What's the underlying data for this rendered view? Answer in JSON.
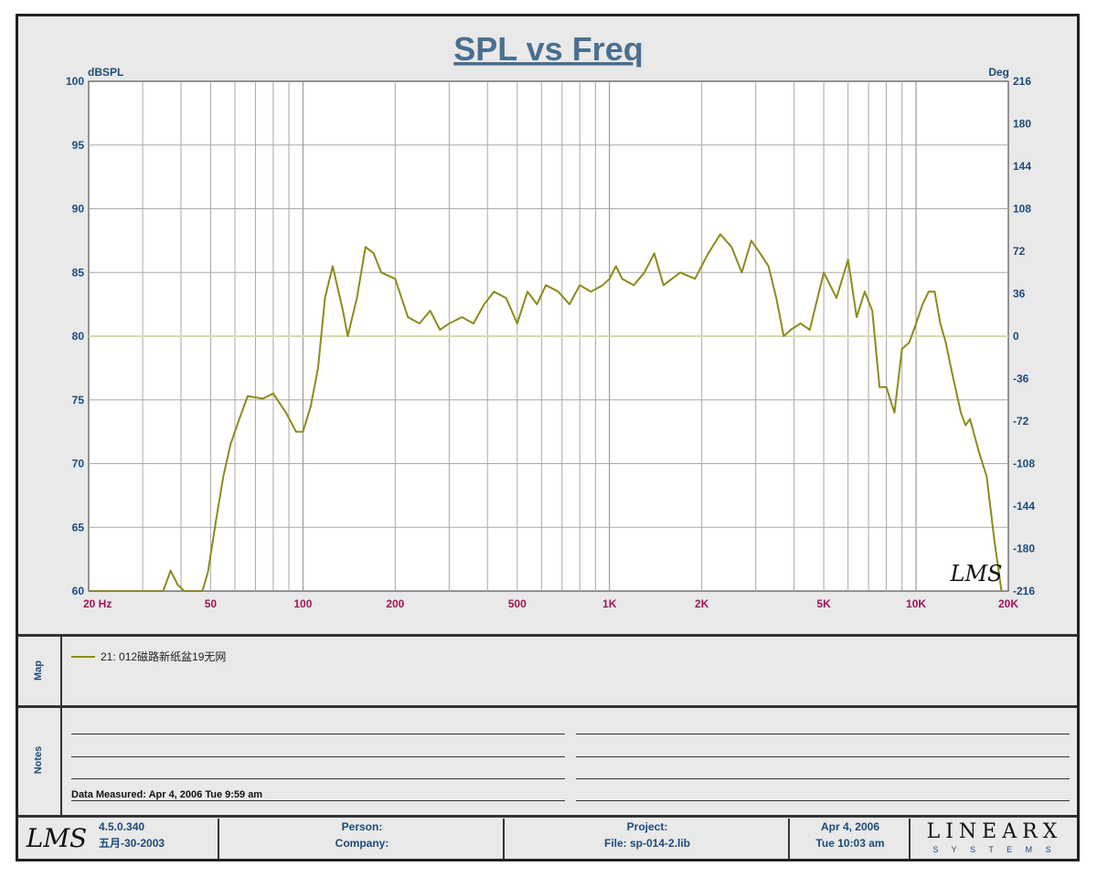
{
  "chart_data": {
    "type": "line",
    "title": "SPL vs Freq",
    "ylabel_left": "dBSPL",
    "ylabel_right": "Deg",
    "x_scale": "log",
    "xlim": [
      20,
      20000
    ],
    "ylim": [
      60,
      100
    ],
    "y2lim": [
      -216,
      216
    ],
    "x_tick_labels": [
      "20  Hz",
      "50",
      "100",
      "200",
      "500",
      "1K",
      "2K",
      "5K",
      "10K",
      "20K"
    ],
    "x_tick_values": [
      20,
      50,
      100,
      200,
      500,
      1000,
      2000,
      5000,
      10000,
      20000
    ],
    "y_ticks": [
      100,
      95,
      90,
      85,
      80,
      75,
      70,
      65,
      60
    ],
    "y2_ticks": [
      216,
      180,
      144,
      108,
      72,
      36,
      0,
      -36,
      -72,
      -108,
      -144,
      -180,
      -216
    ],
    "grid": true,
    "reference_line_y": 80,
    "series": [
      {
        "name": "21: 012磁路新纸盆19无网",
        "color": "#8b8b1a",
        "x": [
          20,
          35,
          37,
          39,
          41,
          45,
          47,
          49,
          52,
          55,
          58,
          62,
          66,
          70,
          74,
          80,
          88,
          95,
          100,
          106,
          112,
          118,
          125,
          135,
          140,
          150,
          160,
          170,
          180,
          200,
          220,
          240,
          260,
          280,
          300,
          330,
          360,
          390,
          420,
          460,
          500,
          540,
          580,
          620,
          680,
          740,
          800,
          870,
          950,
          1000,
          1050,
          1100,
          1200,
          1300,
          1400,
          1500,
          1700,
          1900,
          2100,
          2300,
          2500,
          2700,
          2900,
          3100,
          3300,
          3500,
          3700,
          3900,
          4200,
          4500,
          5000,
          5500,
          6000,
          6400,
          6800,
          7200,
          7600,
          8000,
          8500,
          9000,
          9500,
          10000,
          10500,
          11000,
          11500,
          12000,
          12500,
          13000,
          14000,
          14500,
          15000,
          16000,
          17000,
          18000,
          19000
        ],
        "y": [
          60,
          60,
          61.6,
          60.5,
          60,
          60,
          60,
          61.5,
          65.5,
          69,
          71.5,
          73.5,
          75.3,
          75.2,
          75.1,
          75.5,
          74,
          72.5,
          72.5,
          74.5,
          77.5,
          83,
          85.5,
          82,
          80,
          83,
          87,
          86.5,
          85,
          84.5,
          81.5,
          81,
          82,
          80.5,
          81,
          81.5,
          81,
          82.5,
          83.5,
          83,
          81,
          83.5,
          82.5,
          84,
          83.5,
          82.5,
          84,
          83.5,
          84,
          84.5,
          85.5,
          84.5,
          84,
          85,
          86.5,
          84,
          85,
          84.5,
          86.5,
          88,
          87,
          85,
          87.5,
          86.5,
          85.5,
          83,
          80,
          80.5,
          81,
          80.5,
          85,
          83,
          86,
          81.5,
          83.5,
          82,
          76,
          76,
          74,
          79,
          79.5,
          81,
          82.5,
          83.5,
          83.5,
          81,
          79.5,
          77.5,
          74,
          73,
          73.5,
          71,
          69,
          64,
          60
        ]
      }
    ]
  },
  "map": {
    "label": "Map",
    "entry": "21: 012磁路新纸盆19无网"
  },
  "notes": {
    "label": "Notes",
    "data_measured": "Data Measured: Apr  4, 2006  Tue  9:59 am"
  },
  "footer": {
    "logo": "LMS",
    "version": "4.5.0.340",
    "version_date": "五月-30-2003",
    "person_label": "Person:",
    "company_label": "Company:",
    "project_label": "Project:",
    "file_label": "File: sp-014-2.lib",
    "date": "Apr  4, 2006",
    "time": "Tue 10:03 am",
    "brand_top": "LINEARX",
    "brand_bottom": "S Y S T E M S"
  },
  "watermark": "LMS",
  "colors": {
    "title": "#4a6f90",
    "axis_text_left": "#1e4a78",
    "axis_text_bottom": "#a0145a",
    "curve": "#8b8b1a",
    "reference_line": "#d8d8b0"
  }
}
